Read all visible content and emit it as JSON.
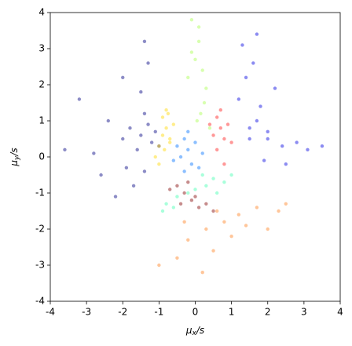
{
  "chart_data": {
    "type": "scatter",
    "xlabel": {
      "base": "μ",
      "sub": "x",
      "tail": "/s"
    },
    "ylabel": {
      "base": "μ",
      "sub": "y",
      "tail": "/s"
    },
    "xlim": [
      -4,
      4
    ],
    "ylim": [
      -4,
      4
    ],
    "xticks": [
      -4,
      -3,
      -2,
      -1,
      0,
      1,
      2,
      3,
      4
    ],
    "yticks": [
      -4,
      -3,
      -2,
      -1,
      0,
      1,
      2,
      3,
      4
    ],
    "series": [
      {
        "color": "#000080",
        "x": [
          -1.5,
          -1.2,
          -1.8,
          -1.3,
          -1.6,
          -2.0,
          -1.1,
          -1.4,
          -2.4,
          -1.9,
          -1.4,
          -2.8,
          -1.7,
          -1.3,
          -3.2,
          -2.2,
          -1.0,
          -1.5,
          -2.6,
          -3.6,
          -1.4,
          -2.0
        ],
        "y": [
          0.6,
          0.4,
          0.8,
          0.9,
          0.2,
          0.5,
          0.7,
          1.2,
          1.0,
          -0.3,
          3.2,
          0.1,
          -0.8,
          2.6,
          1.6,
          -1.1,
          0.3,
          1.8,
          -0.5,
          0.2,
          -0.4,
          2.2
        ]
      },
      {
        "color": "#0000e0",
        "x": [
          1.5,
          1.7,
          1.4,
          2.0,
          1.8,
          2.4,
          2.8,
          1.3,
          1.6,
          2.2,
          3.1,
          1.5,
          1.9,
          3.5,
          1.2,
          2.5,
          2.0,
          1.7
        ],
        "y": [
          0.8,
          1.0,
          2.2,
          0.5,
          1.4,
          0.3,
          0.4,
          3.1,
          2.6,
          1.9,
          0.2,
          0.5,
          -0.1,
          0.3,
          1.6,
          -0.2,
          0.7,
          3.4
        ]
      },
      {
        "color": "#ffd700",
        "x": [
          -0.8,
          -0.9,
          -0.7,
          -1.0,
          -0.8,
          -0.6,
          -1.1,
          -0.9,
          -0.75,
          -0.85,
          -1.0,
          -0.7
        ],
        "y": [
          0.8,
          1.1,
          0.5,
          0.3,
          1.3,
          0.9,
          0.0,
          0.6,
          1.2,
          0.2,
          -0.2,
          0.4
        ]
      },
      {
        "color": "#0070ff",
        "x": [
          -0.2,
          -0.4,
          0.0,
          -0.3,
          -0.1,
          -0.5,
          0.2,
          -0.2,
          -0.6,
          0.1,
          -0.3
        ],
        "y": [
          0.2,
          0.0,
          0.4,
          0.5,
          -0.2,
          0.3,
          0.1,
          0.7,
          -0.1,
          -0.3,
          -0.4
        ]
      },
      {
        "color": "#a8ff50",
        "x": [
          0.1,
          0.0,
          0.2,
          0.3,
          -0.1,
          0.1,
          0.25,
          -0.2,
          0.15,
          0.05,
          0.4,
          -0.1
        ],
        "y": [
          3.2,
          2.7,
          2.4,
          1.9,
          2.9,
          3.6,
          1.5,
          2.2,
          1.2,
          1.0,
          0.8,
          3.8
        ]
      },
      {
        "color": "#ff1a1a",
        "x": [
          0.7,
          0.6,
          0.8,
          0.9,
          0.5,
          0.7,
          1.0,
          0.6,
          0.8,
          0.4
        ],
        "y": [
          0.8,
          1.1,
          0.5,
          0.9,
          0.6,
          1.3,
          0.4,
          0.2,
          -0.2,
          0.9
        ]
      },
      {
        "color": "#40ffb0",
        "x": [
          0.3,
          0.5,
          0.0,
          -0.5,
          -0.8,
          0.8,
          -0.2,
          0.2,
          -0.9,
          0.6,
          -0.6,
          1.0
        ],
        "y": [
          -0.8,
          -0.6,
          -0.9,
          -1.1,
          -1.3,
          -0.7,
          -1.0,
          -0.5,
          -1.5,
          -1.0,
          -1.4,
          -0.5
        ]
      },
      {
        "color": "#800000",
        "x": [
          -0.3,
          -0.1,
          -0.5,
          0.1,
          0.3,
          -0.7,
          -0.2,
          0.0,
          0.5,
          -0.4
        ],
        "y": [
          -1.0,
          -1.2,
          -0.8,
          -1.4,
          -1.3,
          -0.9,
          -0.7,
          -1.1,
          -1.5,
          -1.3
        ]
      },
      {
        "color": "#ff8020",
        "x": [
          0.3,
          0.8,
          -0.2,
          1.2,
          1.7,
          0.5,
          2.3,
          -0.5,
          1.0,
          0.2,
          -1.0,
          2.0,
          1.4,
          0.6,
          -0.3,
          2.5
        ],
        "y": [
          -2.0,
          -1.8,
          -2.3,
          -1.6,
          -1.4,
          -2.6,
          -1.5,
          -2.8,
          -2.2,
          -3.2,
          -3.0,
          -2.0,
          -1.9,
          -1.5,
          -1.8,
          -1.3
        ]
      }
    ]
  }
}
